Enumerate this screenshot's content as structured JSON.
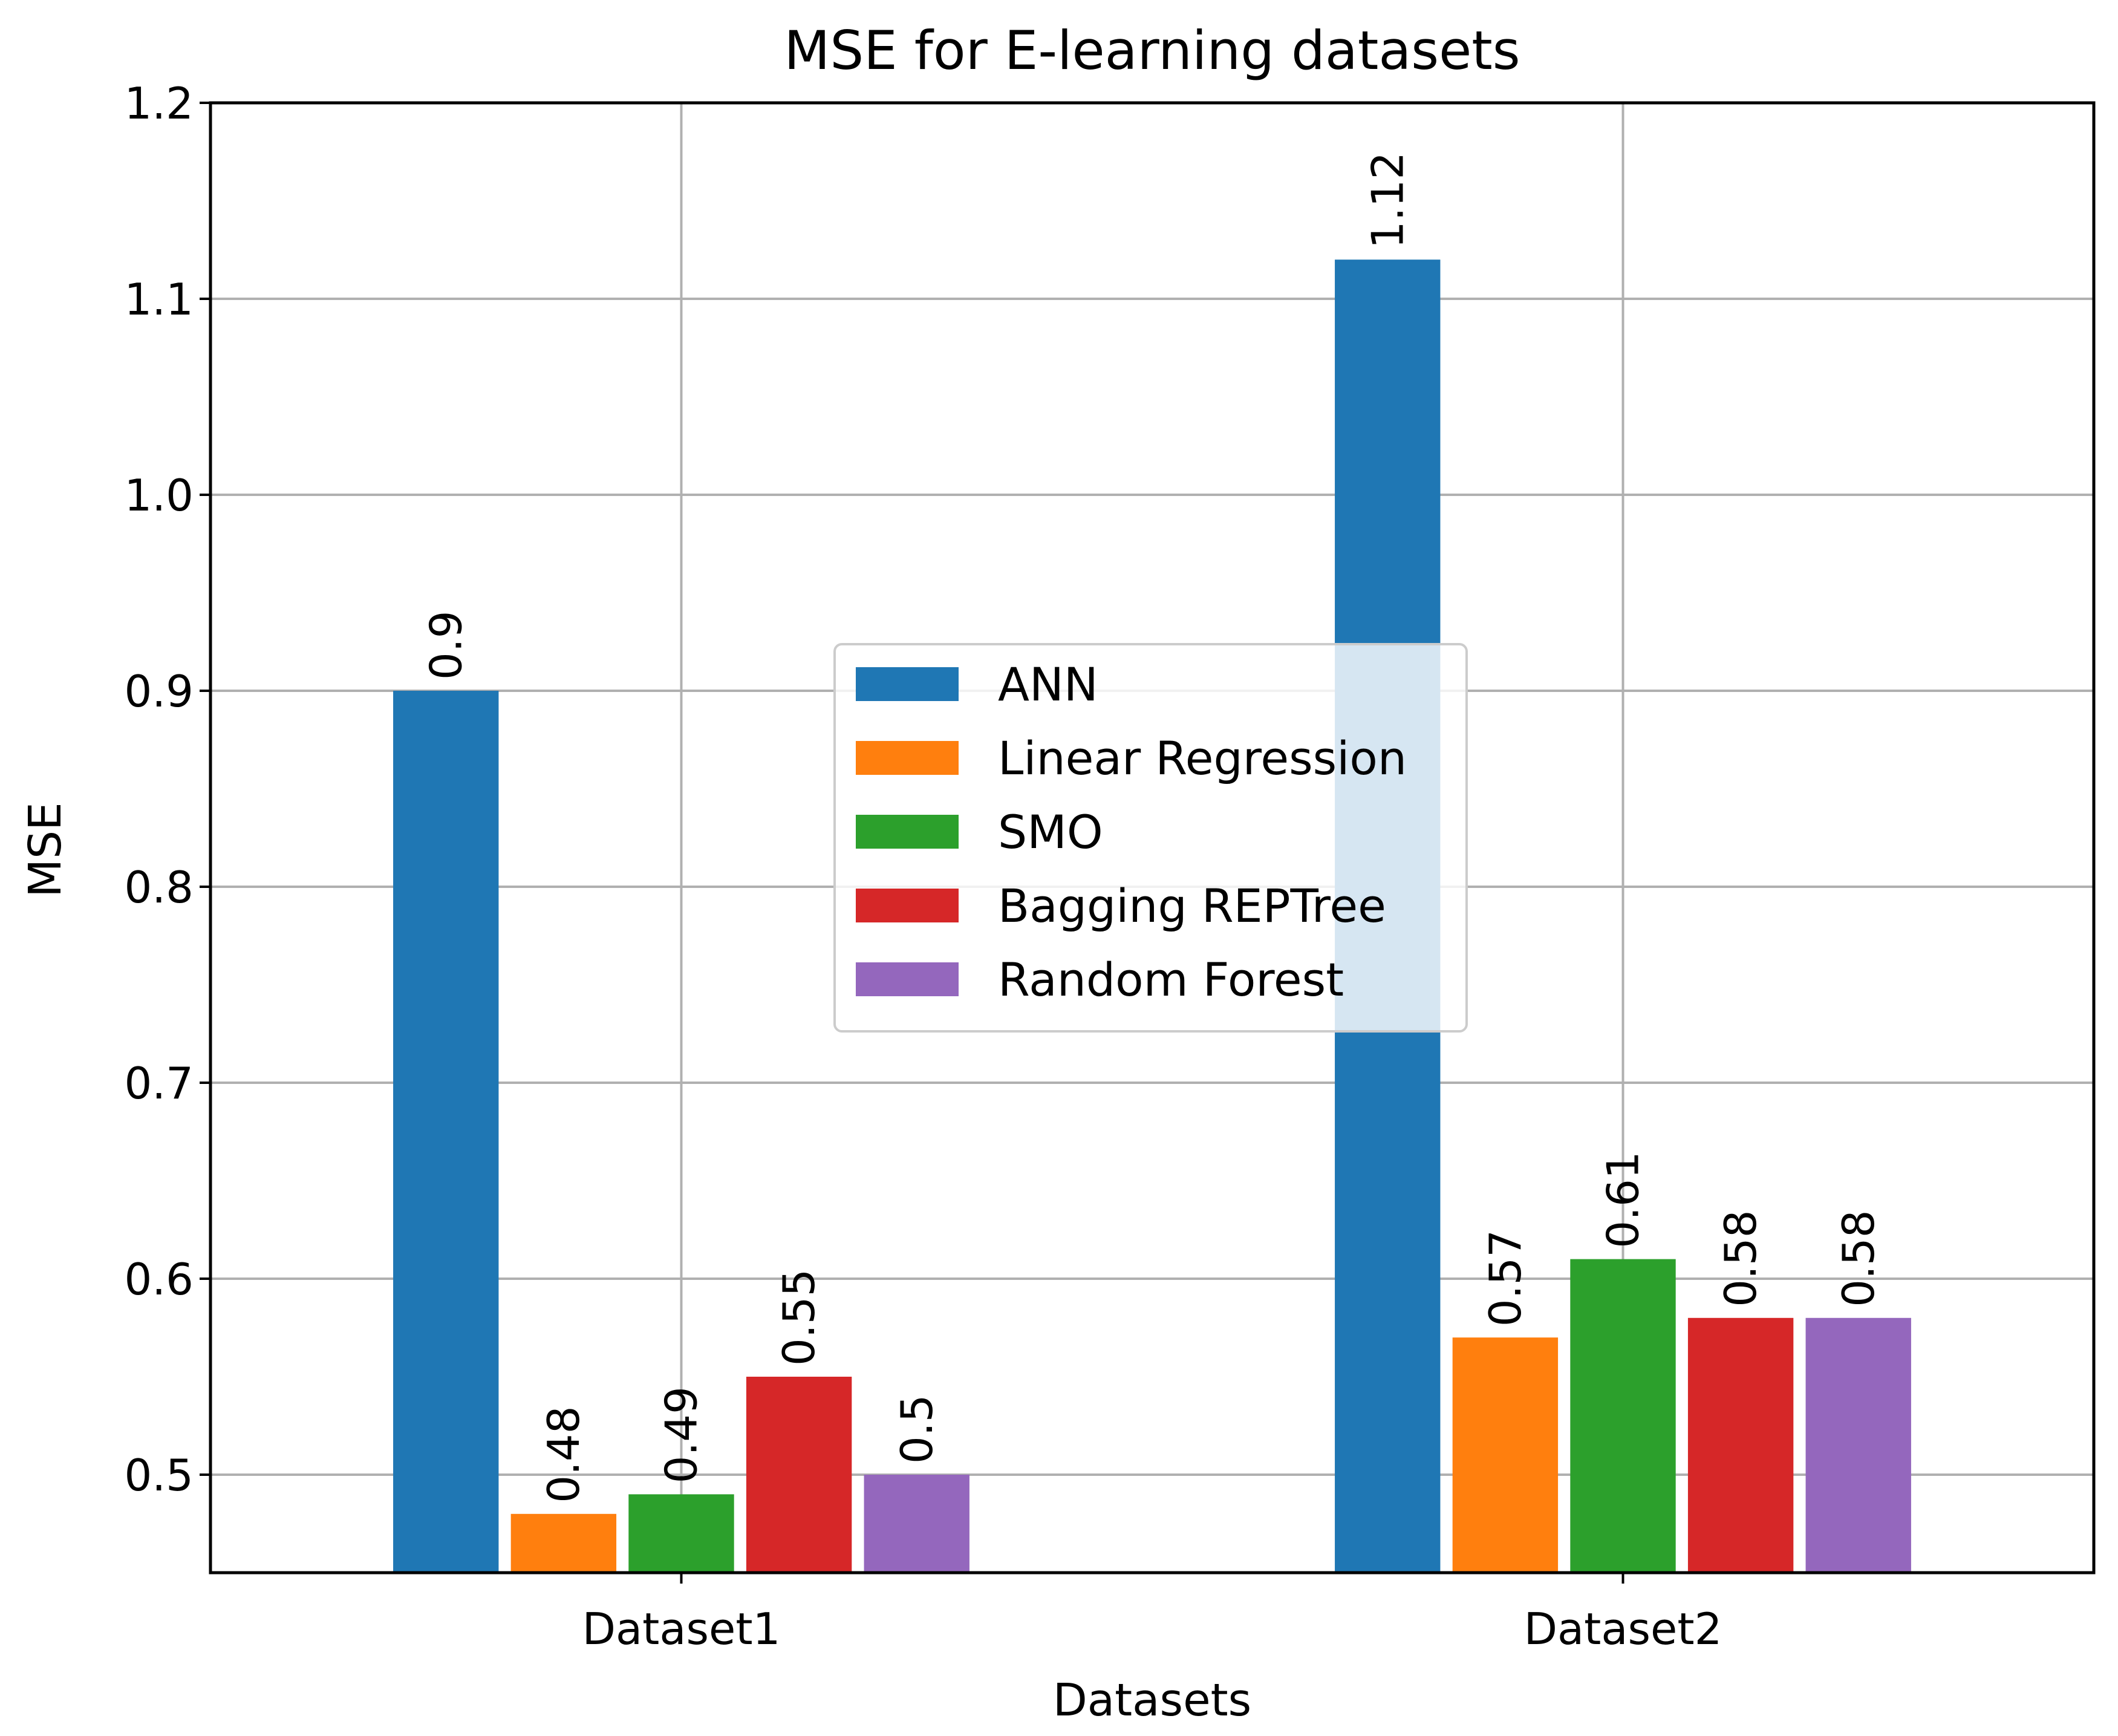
{
  "chart_data": {
    "type": "bar",
    "title": "MSE  for E-learning datasets",
    "xlabel": "Datasets",
    "ylabel": "MSE",
    "categories": [
      "Dataset1",
      "Dataset2"
    ],
    "ylim": [
      0.45,
      1.2
    ],
    "yticks": [
      0.5,
      0.6,
      0.7,
      0.8,
      0.9,
      1.0,
      1.1,
      1.2
    ],
    "grid": true,
    "legend_position": "center",
    "series": [
      {
        "name": "ANN",
        "color": "#1f77b4",
        "values": [
          0.9,
          1.12
        ]
      },
      {
        "name": "Linear Regression",
        "color": "#ff7f0e",
        "values": [
          0.48,
          0.57
        ]
      },
      {
        "name": "SMO",
        "color": "#2ca02c",
        "values": [
          0.49,
          0.61
        ]
      },
      {
        "name": "Bagging REPTree",
        "color": "#d62728",
        "values": [
          0.55,
          0.58
        ]
      },
      {
        "name": "Random Forest",
        "color": "#9467bd",
        "values": [
          0.5,
          0.58
        ]
      }
    ]
  }
}
